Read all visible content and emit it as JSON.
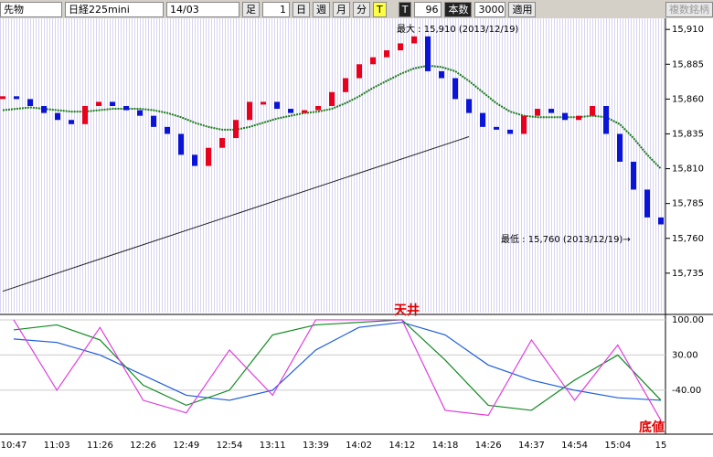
{
  "toolbar": {
    "market": "先物",
    "symbol": "日経225mini",
    "contract": "14/03",
    "bar_label": "足",
    "bar_size": "1",
    "periods": [
      "日",
      "週",
      "月",
      "分"
    ],
    "tick_mode": "T",
    "tick_mode2": "T",
    "count": "96",
    "count_label": "本数",
    "count2": "3000",
    "apply": "適用",
    "multi": "複数銘柄"
  },
  "chart_data": [
    {
      "type": "candle",
      "ylim": [
        15708,
        15918
      ],
      "yticks": [
        {
          "value": 15910,
          "label": "15,910"
        },
        {
          "value": 15885,
          "label": "15,885"
        },
        {
          "value": 15860,
          "label": "15,860"
        },
        {
          "value": 15835,
          "label": "15,835"
        },
        {
          "value": 15810,
          "label": "15,810"
        },
        {
          "value": 15785,
          "label": "15,785"
        },
        {
          "value": 15760,
          "label": "15,760"
        },
        {
          "value": 15735,
          "label": "15,735"
        }
      ],
      "values": [
        15862,
        15860,
        15855,
        15850,
        15845,
        15842,
        15855,
        15858,
        15855,
        15852,
        15848,
        15840,
        15835,
        15820,
        15812,
        15825,
        15832,
        15845,
        15858,
        15858,
        15853,
        15850,
        15852,
        15855,
        15865,
        15875,
        15885,
        15890,
        15895,
        15900,
        15905,
        15880,
        15875,
        15860,
        15850,
        15840,
        15838,
        15835,
        15848,
        15853,
        15850,
        15845,
        15848,
        15855,
        15835,
        15815,
        15795,
        15775,
        15770
      ],
      "up_color": "#e8001c",
      "down_color": "#0a14d8",
      "series": [
        {
          "name": "MA-long",
          "color": "#222222",
          "values": [
            15722,
            null,
            null,
            null,
            null,
            null,
            null,
            null,
            null,
            null,
            null,
            null,
            null,
            null,
            null,
            null,
            null,
            null,
            null,
            null,
            null,
            null,
            null,
            null,
            null,
            null,
            null,
            null,
            null,
            null,
            null,
            null,
            null,
            null,
            15833,
            null,
            null,
            null,
            null,
            null,
            null,
            null,
            null,
            null,
            null,
            null,
            null,
            null,
            null
          ]
        },
        {
          "name": "MA-mid",
          "color": "#1a7a1a",
          "values": [
            15852,
            15853,
            15854,
            15853,
            15852,
            15851,
            15851,
            15852,
            15853,
            15853,
            15853,
            15852,
            15850,
            15847,
            15843,
            15840,
            15838,
            15838,
            15840,
            15843,
            15846,
            15848,
            15850,
            15851,
            15853,
            15857,
            15862,
            15868,
            15873,
            15878,
            15882,
            15884,
            15883,
            15880,
            15873,
            15865,
            15857,
            15851,
            15848,
            15847,
            15847,
            15847,
            15847,
            15848,
            15847,
            15842,
            15832,
            15820,
            15810
          ]
        }
      ],
      "annotations": {
        "max": "最大 : 15,910 (2013/12/19)",
        "min": "最低 : 15,760 (2013/12/19)→"
      }
    },
    {
      "type": "line",
      "ylim": [
        -122,
        109
      ],
      "yticks": [
        {
          "value": 100,
          "label": "100.00"
        },
        {
          "value": 30,
          "label": "30.00"
        },
        {
          "value": -40,
          "label": "-40.00"
        }
      ],
      "categories": [
        "10:47",
        "11:03",
        "11:26",
        "12:26",
        "12:49",
        "12:54",
        "13:11",
        "13:39",
        "14:02",
        "14:12",
        "14:18",
        "14:26",
        "14:37",
        "14:54",
        "15:04",
        "15"
      ],
      "series": [
        {
          "name": "osc-blue",
          "color": "#1c5cdc",
          "values": [
            62,
            55,
            30,
            -10,
            -50,
            -60,
            -40,
            40,
            85,
            95,
            70,
            10,
            -20,
            -40,
            -55,
            -60
          ]
        },
        {
          "name": "osc-green",
          "color": "#0d8a1f",
          "values": [
            80,
            90,
            60,
            -30,
            -70,
            -40,
            70,
            90,
            95,
            100,
            20,
            -70,
            -80,
            -20,
            30,
            -60
          ]
        },
        {
          "name": "osc-pink",
          "color": "#e03ce0",
          "values": [
            100,
            -40,
            85,
            -60,
            -85,
            40,
            -50,
            100,
            100,
            100,
            -80,
            -90,
            60,
            -60,
            50,
            -100
          ]
        }
      ],
      "annotations": {
        "top": "天井",
        "bottom": "底値"
      }
    }
  ]
}
